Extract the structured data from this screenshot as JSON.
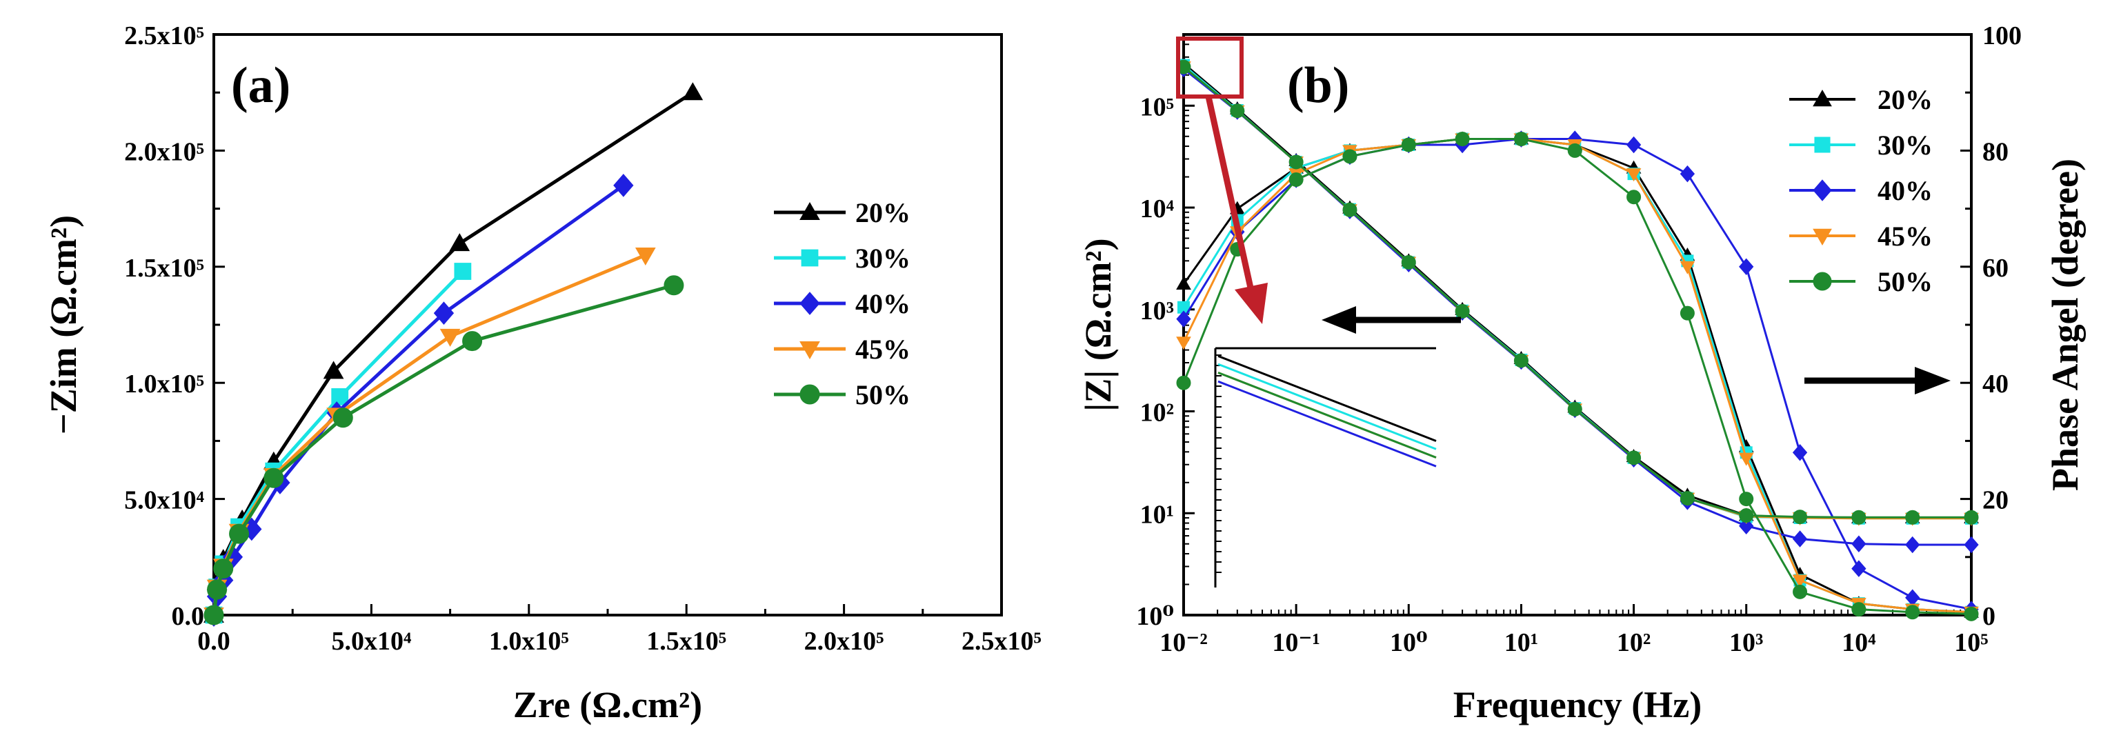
{
  "chart_data": [
    {
      "type": "line",
      "panel_label": "(a)",
      "xlabel": "Zre (Ω.cm²)",
      "ylabel": "−Zim (Ω.cm²)",
      "xlim": [
        0,
        250000
      ],
      "ylim": [
        0,
        250000
      ],
      "x_tick_labels": [
        "0.0",
        "5.0x10⁴",
        "1.0x10⁵",
        "1.5x10⁵",
        "2.0x10⁵",
        "2.5x10⁵"
      ],
      "y_tick_labels": [
        "0.0",
        "5.0x10⁴",
        "1.0x10⁵",
        "1.5x10⁵",
        "2.0x10⁵",
        "2.5x10⁵"
      ],
      "legend_position": "center-right",
      "series": [
        {
          "name": "20%",
          "color": "#000000",
          "marker": "triangle-up",
          "x": [
            0,
            1000,
            3000,
            9000,
            19000,
            38000,
            78000,
            152000
          ],
          "y": [
            0,
            14000,
            24000,
            41000,
            66000,
            105000,
            160000,
            225000
          ]
        },
        {
          "name": "30%",
          "color": "#19e3e3",
          "marker": "square",
          "x": [
            0,
            1000,
            3000,
            8000,
            19000,
            40000,
            79000
          ],
          "y": [
            0,
            12000,
            22000,
            38000,
            62000,
            94000,
            148000
          ]
        },
        {
          "name": "40%",
          "color": "#1f1fe0",
          "marker": "diamond",
          "x": [
            0,
            1000,
            3000,
            6000,
            12000,
            21000,
            39000,
            73000,
            130000
          ],
          "y": [
            0,
            8000,
            15000,
            25000,
            37000,
            57000,
            87000,
            130000,
            185000
          ]
        },
        {
          "name": "45%",
          "color": "#f7901e",
          "marker": "triangle-down",
          "x": [
            0,
            1000,
            3000,
            8000,
            19000,
            39000,
            75000,
            137000
          ],
          "y": [
            0,
            12000,
            21000,
            36000,
            60000,
            86000,
            120000,
            155000
          ]
        },
        {
          "name": "50%",
          "color": "#1f8a2e",
          "marker": "circle",
          "x": [
            0,
            1000,
            3000,
            8000,
            19000,
            41000,
            82000,
            146000
          ],
          "y": [
            0,
            11000,
            20000,
            35000,
            59000,
            85000,
            118000,
            142000
          ]
        }
      ]
    },
    {
      "type": "line",
      "panel_label": "(b)",
      "xlabel": "Frequency (Hz)",
      "ylabel": "|Z| (Ω.cm²)",
      "ylabel_right": "Phase Angel (degree)",
      "x_scale": "log",
      "y_scale": "log",
      "xlim": [
        0.01,
        100000
      ],
      "ylim": [
        1,
        500000
      ],
      "ylim_right": [
        0,
        100
      ],
      "x_tick_labels": [
        "10⁻²",
        "10⁻¹",
        "10⁰",
        "10¹",
        "10²",
        "10³",
        "10⁴",
        "10⁵"
      ],
      "y_tick_labels": [
        "10⁰",
        "10¹",
        "10²",
        "10³",
        "10⁴",
        "10⁵"
      ],
      "y_right_tick_labels": [
        "0",
        "20",
        "40",
        "60",
        "80",
        "100"
      ],
      "legend_position": "top-right",
      "inset": "zoom of |Z| at lowest frequencies (highlighted box)",
      "frequency": [
        0.01,
        0.03,
        0.1,
        0.3,
        1,
        3,
        10,
        30,
        100,
        300,
        1000,
        3000,
        10000,
        30000,
        100000
      ],
      "series": [
        {
          "name": "20%",
          "color": "#000000",
          "marker": "triangle-up",
          "z_modulus": [
            260000,
            93000,
            29000,
            9900,
            3000,
            1000,
            330,
            110,
            36,
            15,
            9.5,
            9.1,
            9.0,
            9.0,
            9.0
          ],
          "phase": [
            57,
            70,
            77,
            80,
            81,
            82,
            82,
            81,
            77,
            62,
            29,
            7,
            2,
            1,
            0.5
          ]
        },
        {
          "name": "30%",
          "color": "#19e3e3",
          "marker": "square",
          "z_modulus": [
            250000,
            90000,
            28000,
            9600,
            2900,
            970,
            320,
            107,
            35,
            14,
            9.2,
            9.0,
            8.9,
            8.9,
            8.9
          ],
          "phase": [
            53,
            68,
            77,
            80,
            81,
            82,
            82,
            81,
            76,
            61,
            28,
            6,
            2,
            1,
            0.5
          ]
        },
        {
          "name": "40%",
          "color": "#1f1fe0",
          "marker": "diamond",
          "z_modulus": [
            230000,
            88000,
            28000,
            9300,
            2800,
            940,
            310,
            104,
            34,
            13,
            7.5,
            5.6,
            5.0,
            4.9,
            4.9
          ],
          "phase": [
            51,
            66,
            75,
            79,
            81,
            81,
            82,
            82,
            81,
            76,
            60,
            28,
            8,
            3,
            1
          ]
        },
        {
          "name": "45%",
          "color": "#f7901e",
          "marker": "triangle-down",
          "z_modulus": [
            240000,
            89000,
            28000,
            9500,
            2900,
            960,
            315,
            105,
            35,
            14,
            9.3,
            9.0,
            8.9,
            8.9,
            8.9
          ],
          "phase": [
            47,
            66,
            76,
            80,
            81,
            82,
            82,
            81,
            76,
            60,
            27,
            6,
            2,
            1,
            0.5
          ]
        },
        {
          "name": "50%",
          "color": "#1f8a2e",
          "marker": "circle",
          "z_modulus": [
            240000,
            89000,
            28000,
            9500,
            2900,
            960,
            315,
            105,
            35,
            14,
            9.5,
            9.2,
            9.1,
            9.1,
            9.1
          ],
          "phase": [
            40,
            63,
            75,
            79,
            81,
            82,
            82,
            80,
            72,
            52,
            20,
            4,
            1,
            0.5,
            0.2
          ]
        }
      ]
    }
  ]
}
